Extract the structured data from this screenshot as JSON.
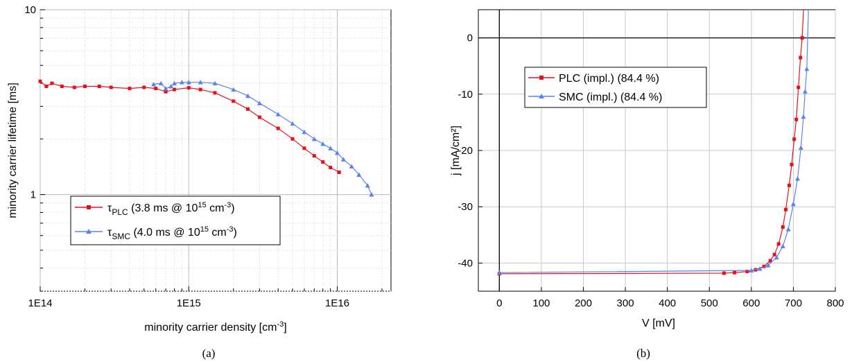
{
  "chart_data": [
    {
      "type": "scatter",
      "caption": "(a)",
      "xlabel": "minority carrier density [cm",
      "xlabel_sup": "-3",
      "xlabel_end": "]",
      "ylabel": "minority carrier lifetime [ms]",
      "x_scale": "log",
      "y_scale": "log",
      "xlim": [
        100000000000000.0,
        2.3e+16
      ],
      "ylim": [
        0.3,
        10
      ],
      "x_ticks": [
        {
          "value": 100000000000000.0,
          "label": "1E14"
        },
        {
          "value": 1000000000000000.0,
          "label": "1E15"
        },
        {
          "value": 1e+16,
          "label": "1E16"
        }
      ],
      "y_ticks": [
        {
          "value": 1,
          "label": "1"
        },
        {
          "value": 10,
          "label": "10"
        }
      ],
      "grid": true,
      "legend_position": "bottom-center",
      "series": [
        {
          "name": "τ",
          "name_sub": "PLC",
          "name_rest": " (3.8 ms @ 10",
          "name_sup": "15",
          "name_end": " cm",
          "name_sup2": "-3",
          "name_close": ")",
          "color": "#e8101a",
          "marker": "square",
          "x": [
            100000000000000.0,
            110000000000000.0,
            120000000000000.0,
            140000000000000.0,
            170000000000000.0,
            200000000000000.0,
            250000000000000.0,
            300000000000000.0,
            400000000000000.0,
            500000000000000.0,
            600000000000000.0,
            700000000000000.0,
            800000000000000.0,
            1000000000000000.0,
            1200000000000000.0,
            1500000000000000.0,
            2000000000000000.0,
            2500000000000000.0,
            3000000000000000.0,
            4000000000000000.0,
            5000000000000000.0,
            6000000000000000.0,
            7000000000000000.0,
            8000000000000000.0,
            9000000000000000.0,
            1.03e+16
          ],
          "y": [
            4.1,
            3.85,
            4.0,
            3.85,
            3.8,
            3.85,
            3.85,
            3.8,
            3.75,
            3.8,
            3.75,
            3.6,
            3.7,
            3.78,
            3.7,
            3.55,
            3.2,
            2.9,
            2.62,
            2.28,
            2.0,
            1.78,
            1.62,
            1.5,
            1.4,
            1.32
          ]
        },
        {
          "name": "τ",
          "name_sub": "SMC",
          "name_rest": " (4.0 ms @ 10",
          "name_sup": "15",
          "name_end": " cm",
          "name_sup2": "-3",
          "name_close": ")",
          "color": "#5b83f0",
          "marker": "triangle",
          "x": [
            580000000000000.0,
            650000000000000.0,
            700000000000000.0,
            760000000000000.0,
            800000000000000.0,
            900000000000000.0,
            1000000000000000.0,
            1200000000000000.0,
            1500000000000000.0,
            2000000000000000.0,
            2500000000000000.0,
            3000000000000000.0,
            4000000000000000.0,
            5000000000000000.0,
            6000000000000000.0,
            7000000000000000.0,
            8000000000000000.0,
            9000000000000000.0,
            1e+16,
            1.1e+16,
            1.25e+16,
            1.4e+16,
            1.6e+16,
            1.7e+16
          ],
          "y": [
            3.95,
            4.0,
            3.75,
            3.85,
            4.0,
            4.05,
            4.05,
            4.05,
            4.0,
            3.7,
            3.42,
            3.12,
            2.72,
            2.42,
            2.18,
            2.0,
            1.88,
            1.78,
            1.68,
            1.55,
            1.42,
            1.28,
            1.12,
            1.0
          ]
        }
      ]
    },
    {
      "type": "line",
      "caption": "(b)",
      "xlabel": "V [mV]",
      "ylabel": "j [mA/cm²]",
      "xlim": [
        -50,
        800
      ],
      "ylim": [
        -45,
        5
      ],
      "x_ticks": [
        0,
        100,
        200,
        300,
        400,
        500,
        600,
        700,
        800
      ],
      "y_ticks": [
        0,
        -10,
        -20,
        -30,
        -40
      ],
      "grid": true,
      "legend_position": "top-center",
      "series": [
        {
          "name": "PLC (impl.) (84.4 %)",
          "color": "#e8101a",
          "marker": "square",
          "x": [
            0,
            535,
            560,
            590,
            610,
            630,
            645,
            655,
            665,
            675,
            682,
            690,
            696,
            702,
            707,
            712,
            717,
            721,
            724
          ],
          "y": [
            -41.9,
            -41.8,
            -41.7,
            -41.5,
            -41.2,
            -40.6,
            -39.6,
            -38.5,
            -36.6,
            -33.6,
            -30.5,
            -26.2,
            -22.5,
            -18.0,
            -14.5,
            -8.8,
            -3.5,
            0.0,
            5.0
          ]
        },
        {
          "name": "SMC (impl.) (84.4 %)",
          "color": "#5b83f0",
          "marker": "triangle",
          "x": [
            0,
            600,
            620,
            640,
            660,
            675,
            688,
            700,
            710,
            718,
            724,
            728,
            732,
            736
          ],
          "y": [
            -41.7,
            -41.3,
            -41.0,
            -40.4,
            -39.0,
            -37.0,
            -34.0,
            -29.5,
            -25.0,
            -19.5,
            -14.0,
            -9.5,
            -5.5,
            5.0
          ]
        }
      ]
    }
  ]
}
